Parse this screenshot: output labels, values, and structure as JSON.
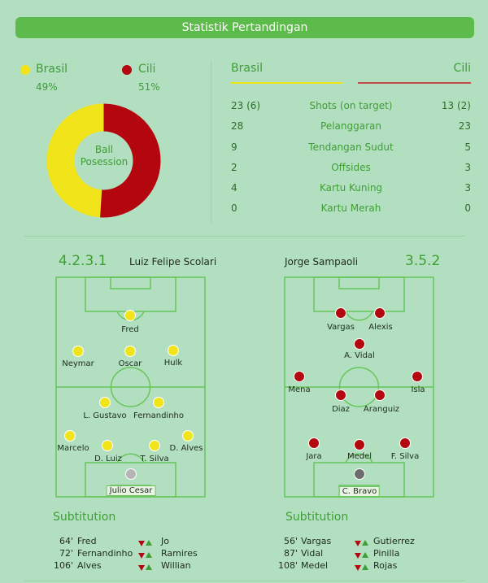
{
  "header": {
    "title": "Statistik Pertandingan"
  },
  "colors": {
    "brasil": "#f2e41a",
    "cili": "#b3060e",
    "accent": "#5cbb4a",
    "background": "#b3dfc1"
  },
  "possession": {
    "teams": [
      {
        "name": "Brasil",
        "percent": "49%",
        "value": 49
      },
      {
        "name": "Cili",
        "percent": "51%",
        "value": 51
      }
    ],
    "center_label_line1": "Ball",
    "center_label_line2": "Posession"
  },
  "stats": {
    "team_left": "Brasil",
    "team_right": "Cili",
    "rows": [
      {
        "left": "23 (6)",
        "label": "Shots (on target)",
        "right": "13 (2)"
      },
      {
        "left": "28",
        "label": "Pelanggaran",
        "right": "23"
      },
      {
        "left": "9",
        "label": "Tendangan Sudut",
        "right": "5"
      },
      {
        "left": "2",
        "label": "Offsides",
        "right": "3"
      },
      {
        "left": "4",
        "label": "Kartu Kuning",
        "right": "3"
      },
      {
        "left": "0",
        "label": "Kartu Merah",
        "right": "0"
      }
    ]
  },
  "lineups": {
    "brasil": {
      "formation": "4.2.3.1",
      "coach": "Luiz Felipe Scolari",
      "players": [
        "Fred",
        "Neymar",
        "Oscar",
        "Hulk",
        "L. Gustavo",
        "Fernandinho",
        "Marcelo",
        "D. Luiz",
        "T. Silva",
        "D. Alves",
        "Julio Cesar"
      ]
    },
    "cili": {
      "formation": "3.5.2",
      "coach": "Jorge Sampaoli",
      "players": [
        "Vargas",
        "Alexis",
        "A. Vidal",
        "Mena",
        "Isla",
        "Diaz",
        "Aranguiz",
        "Jara",
        "Medel",
        "F. Silva",
        "C. Bravo"
      ]
    }
  },
  "substitutions": {
    "title": "Subtitution",
    "brasil": [
      {
        "minute": "64'",
        "out": "Fred",
        "in": "Jo"
      },
      {
        "minute": "72'",
        "out": "Fernandinho",
        "in": "Ramires"
      },
      {
        "minute": "106'",
        "out": "Alves",
        "in": "Willian"
      }
    ],
    "cili": [
      {
        "minute": "56'",
        "out": "Vargas",
        "in": "Gutierrez"
      },
      {
        "minute": "87'",
        "out": "Vidal",
        "in": "Pinilla"
      },
      {
        "minute": "108'",
        "out": "Medel",
        "in": "Rojas"
      }
    ]
  }
}
